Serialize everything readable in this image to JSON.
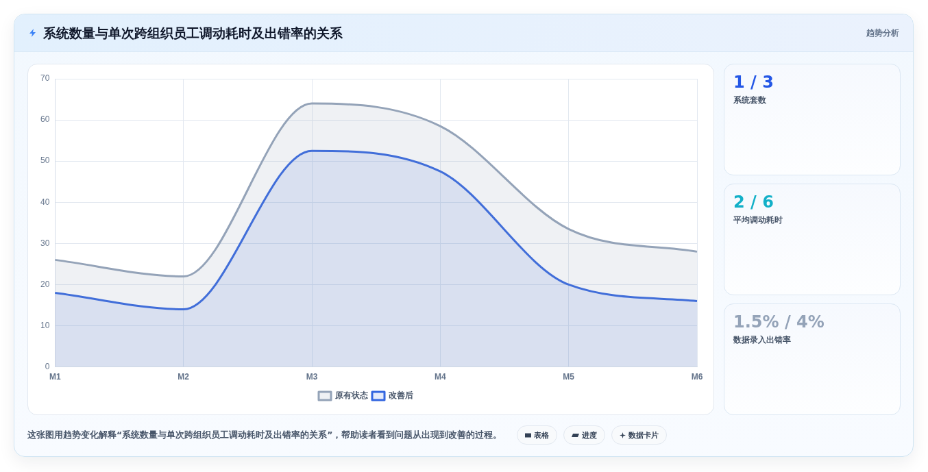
{
  "chart_data": [
    {
      "type": "area",
      "title": "系统数量与单次跨组织员工调动耗时及出错率的关系",
      "categories": [
        "M1",
        "M2",
        "M3",
        "M4",
        "M5",
        "M6"
      ],
      "series": [
        {
          "name": "原有状态",
          "color": "#94a3b8",
          "values": [
            26,
            22,
            64,
            58.5,
            33.5,
            28
          ]
        },
        {
          "name": "改善后",
          "color": "#3366e0",
          "values": [
            18,
            14,
            52.5,
            47.5,
            20,
            16
          ]
        }
      ],
      "ylim": [
        0,
        70
      ],
      "yticks": [
        0,
        10,
        20,
        30,
        40,
        50,
        60,
        70
      ],
      "grid": true,
      "legend": "bottom",
      "marker": "none",
      "annotations": [
        "趋势分析",
        "这张图用趋势变化解释“系统数量与单次跨组织员工调动耗时及出错率的关系”，帮助读者看到问题从出现到改善的过程。",
        "表格",
        "进度",
        "数据卡片"
      ]
    },
    {
      "type": "other",
      "categories": [
        "系统套数",
        "平均调动耗时",
        "数据录入出错率"
      ],
      "value_labels": [
        "1 / 3",
        "2 / 6",
        "1.5% / 4%"
      ]
    }
  ]
}
